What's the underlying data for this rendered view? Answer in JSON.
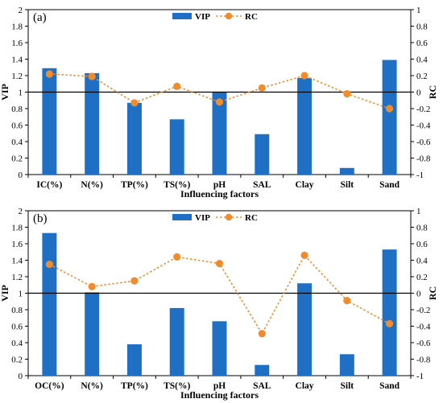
{
  "chart_data": [
    {
      "type": "bar",
      "panel_label": "(a)",
      "categories": [
        "IC(%)",
        "N(%)",
        "TP(%)",
        "TS(%)",
        "pH",
        "SAL",
        "Clay",
        "Silt",
        "Sand"
      ],
      "series": [
        {
          "name": "VIP",
          "type": "bar",
          "axis": "left",
          "color": "#1f6fc5",
          "values": [
            1.29,
            1.23,
            0.87,
            0.67,
            1.0,
            0.49,
            1.17,
            0.08,
            1.39
          ]
        },
        {
          "name": "RC",
          "type": "line",
          "axis": "right",
          "color": "#f08c2c",
          "values": [
            0.22,
            0.19,
            -0.13,
            0.07,
            -0.12,
            0.05,
            0.2,
            -0.02,
            -0.2
          ]
        }
      ],
      "xlabel": "Influencing factors",
      "ylabel": "VIP",
      "y2label": "RC",
      "ylim": [
        0,
        2
      ],
      "y2lim": [
        -1,
        1
      ],
      "yticks": [
        "0",
        "0.2",
        "0.4",
        "0.6",
        "0.8",
        "1",
        "1.2",
        "1.4",
        "1.6",
        "1.8",
        "2"
      ],
      "y2ticks": [
        "-1",
        "-0.8",
        "-0.6",
        "-0.4",
        "-0.2",
        "0",
        "0.2",
        "0.4",
        "0.6",
        "0.8",
        "1"
      ],
      "reference_line": 1,
      "legend": "top-center"
    },
    {
      "type": "bar",
      "panel_label": "(b)",
      "categories": [
        "OC(%)",
        "N(%)",
        "TP(%)",
        "TS(%)",
        "pH",
        "SAL",
        "Clay",
        "Silt",
        "Sand"
      ],
      "series": [
        {
          "name": "VIP",
          "type": "bar",
          "axis": "left",
          "color": "#1f6fc5",
          "values": [
            1.73,
            1.01,
            0.38,
            0.82,
            0.66,
            0.13,
            1.12,
            0.26,
            1.53
          ]
        },
        {
          "name": "RC",
          "type": "line",
          "axis": "right",
          "color": "#f08c2c",
          "values": [
            0.35,
            0.08,
            0.15,
            0.44,
            0.36,
            -0.49,
            0.46,
            -0.09,
            -0.37
          ]
        }
      ],
      "xlabel": "Influencing factors",
      "ylabel": "VIP",
      "y2label": "RC",
      "ylim": [
        0,
        2
      ],
      "y2lim": [
        -1,
        1
      ],
      "yticks": [
        "0",
        "0.2",
        "0.4",
        "0.6",
        "0.8",
        "1",
        "1.2",
        "1.4",
        "1.6",
        "1.8",
        "2"
      ],
      "y2ticks": [
        "-1",
        "-0.8",
        "-0.6",
        "-0.4",
        "-0.2",
        "0",
        "0.2",
        "0.4",
        "0.6",
        "0.8",
        "1"
      ],
      "reference_line": 1,
      "legend": "top-center"
    }
  ]
}
